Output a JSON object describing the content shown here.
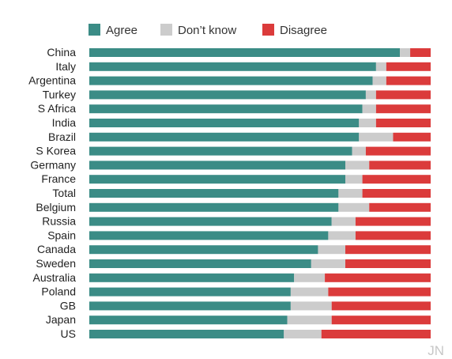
{
  "chart_data": {
    "type": "bar",
    "orientation": "horizontal",
    "stacked": "100%",
    "categories": [
      "China",
      "Italy",
      "Argentina",
      "Turkey",
      "S Africa",
      "India",
      "Brazil",
      "S Korea",
      "Germany",
      "France",
      "Total",
      "Belgium",
      "Russia",
      "Spain",
      "Canada",
      "Sweden",
      "Australia",
      "Poland",
      "GB",
      "Japan",
      "US"
    ],
    "series": [
      {
        "name": "Agree",
        "color": "#3b8c86",
        "values": [
          91,
          84,
          83,
          81,
          80,
          79,
          79,
          77,
          75,
          75,
          73,
          73,
          71,
          70,
          67,
          65,
          60,
          59,
          59,
          58,
          57
        ]
      },
      {
        "name": "Don’t know",
        "color": "#cccccc",
        "values": [
          3,
          3,
          4,
          3,
          4,
          5,
          10,
          4,
          7,
          5,
          7,
          9,
          7,
          8,
          8,
          10,
          9,
          11,
          12,
          13,
          11
        ]
      },
      {
        "name": "Disagree",
        "color": "#db3b3b",
        "values": [
          6,
          13,
          13,
          16,
          16,
          16,
          11,
          19,
          18,
          20,
          20,
          18,
          22,
          22,
          25,
          25,
          31,
          30,
          29,
          29,
          32
        ]
      }
    ],
    "xlim": [
      0,
      100
    ],
    "legend_position": "top",
    "grid": false
  },
  "watermark": "JN"
}
